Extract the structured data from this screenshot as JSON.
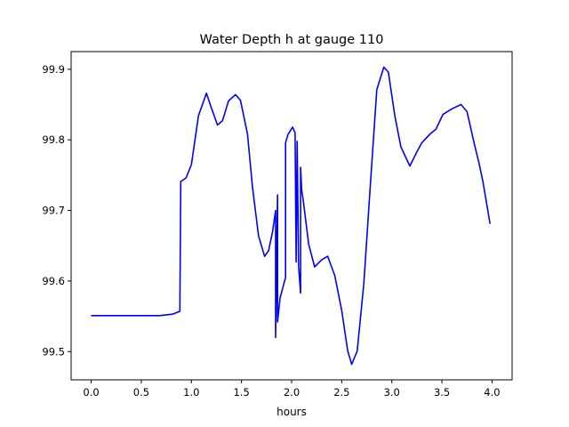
{
  "chart_data": {
    "type": "line",
    "title": "Water Depth h at gauge 110",
    "xlabel": "hours",
    "ylabel": "",
    "xlim": [
      -0.2,
      4.2
    ],
    "ylim": [
      99.46,
      99.925
    ],
    "xticks": [
      "0.0",
      "0.5",
      "1.0",
      "1.5",
      "2.0",
      "2.5",
      "3.0",
      "3.5",
      "4.0"
    ],
    "xtick_values": [
      0,
      0.5,
      1,
      1.5,
      2,
      2.5,
      3,
      3.5,
      4
    ],
    "yticks": [
      "99.5",
      "99.6",
      "99.7",
      "99.8",
      "99.9"
    ],
    "ytick_values": [
      99.5,
      99.6,
      99.7,
      99.8,
      99.9
    ],
    "grid": false,
    "series": [
      {
        "name": "h",
        "color": "#0000ff",
        "x": [
          0,
          0.68,
          0.81,
          0.885,
          0.894,
          0.947,
          1.0,
          1.07,
          1.15,
          1.19,
          1.26,
          1.31,
          1.37,
          1.44,
          1.49,
          1.56,
          1.61,
          1.67,
          1.73,
          1.77,
          1.81,
          1.84,
          1.84,
          1.86,
          1.86,
          1.885,
          1.94,
          1.94,
          1.965,
          2.01,
          2.035,
          2.045,
          2.055,
          2.07,
          2.09,
          2.09,
          2.1,
          2.115,
          2.17,
          2.23,
          2.3,
          2.36,
          2.43,
          2.5,
          2.56,
          2.6,
          2.655,
          2.72,
          2.79,
          2.85,
          2.92,
          2.965,
          3.03,
          3.09,
          3.18,
          3.25,
          3.3,
          3.38,
          3.44,
          3.51,
          3.6,
          3.69,
          3.75,
          3.82,
          3.87,
          3.91,
          3.98
        ],
        "y": [
          99.551,
          99.551,
          99.553,
          99.557,
          99.741,
          99.746,
          99.765,
          99.834,
          99.866,
          99.849,
          99.821,
          99.827,
          99.855,
          99.864,
          99.856,
          99.808,
          99.733,
          99.664,
          99.635,
          99.643,
          99.67,
          99.7,
          99.52,
          99.722,
          99.542,
          99.576,
          99.605,
          99.796,
          99.808,
          99.818,
          99.81,
          99.627,
          99.798,
          99.62,
          99.583,
          99.761,
          99.729,
          99.715,
          99.652,
          99.62,
          99.63,
          99.635,
          99.608,
          99.558,
          99.501,
          99.482,
          99.501,
          99.596,
          99.746,
          99.871,
          99.903,
          99.896,
          99.834,
          99.79,
          99.763,
          99.783,
          99.796,
          99.808,
          99.815,
          99.836,
          99.844,
          99.85,
          99.84,
          99.796,
          99.767,
          99.74,
          99.681
        ]
      }
    ]
  }
}
